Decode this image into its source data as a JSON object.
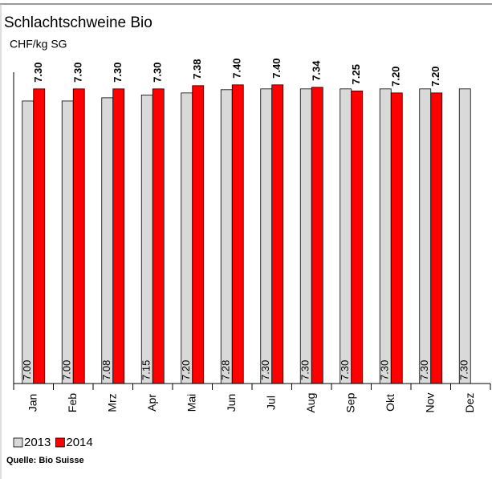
{
  "chart_data": {
    "type": "bar",
    "title": "Schlachtschweine Bio",
    "y_label": "CHF/kg SG",
    "categories": [
      "Jan",
      "Feb",
      "Mrz",
      "Apr",
      "Mai",
      "Jun",
      "Jul",
      "Aug",
      "Sep",
      "Okt",
      "Nov",
      "Dez"
    ],
    "series": [
      {
        "name": "2013",
        "color": "#d9d9d9",
        "values": [
          7.0,
          7.0,
          7.08,
          7.15,
          7.2,
          7.28,
          7.3,
          7.3,
          7.3,
          7.3,
          7.3,
          7.3
        ],
        "value_labels": [
          "7.00",
          "7.00",
          "7.08",
          "7.15",
          "7.20",
          "7.28",
          "7.30",
          "7.30",
          "7.30",
          "7.30",
          "7.30",
          "7.30"
        ]
      },
      {
        "name": "2014",
        "color": "#ff0000",
        "values": [
          7.3,
          7.3,
          7.3,
          7.3,
          7.38,
          7.4,
          7.4,
          7.34,
          7.25,
          7.2,
          7.2,
          null
        ],
        "value_labels": [
          "7.30",
          "7.30",
          "7.30",
          "7.30",
          "7.38",
          "7.40",
          "7.40",
          "7.34",
          "7.25",
          "7.20",
          "7.20",
          null
        ]
      }
    ],
    "source": "Quelle: Bio Suisse"
  }
}
